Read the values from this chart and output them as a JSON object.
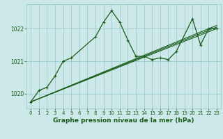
{
  "title": "Graphe pression niveau de la mer (hPa)",
  "bg_color": "#cce8e8",
  "grid_color": "#99cccc",
  "line_color": "#1a5c1a",
  "xlim": [
    -0.5,
    23.5
  ],
  "ylim": [
    1019.55,
    1022.75
  ],
  "yticks": [
    1020,
    1021,
    1022
  ],
  "xticks": [
    0,
    1,
    2,
    3,
    4,
    5,
    6,
    7,
    8,
    9,
    10,
    11,
    12,
    13,
    14,
    15,
    16,
    17,
    18,
    19,
    20,
    21,
    22,
    23
  ],
  "series": [
    {
      "x": [
        0,
        1,
        2,
        3,
        4,
        5,
        8,
        9,
        10,
        11,
        12,
        13,
        14,
        15,
        16,
        17,
        18,
        20,
        21,
        22,
        23
      ],
      "y": [
        1019.75,
        1020.1,
        1020.2,
        1020.55,
        1021.0,
        1021.1,
        1021.75,
        1022.2,
        1022.55,
        1022.2,
        1021.65,
        1021.15,
        1021.15,
        1021.05,
        1021.1,
        1021.05,
        1021.3,
        1022.3,
        1021.5,
        1022.0,
        1022.0
      ],
      "marker": "+"
    },
    {
      "x": [
        0,
        23
      ],
      "y": [
        1019.75,
        1022.0
      ],
      "marker": null
    },
    {
      "x": [
        0,
        23
      ],
      "y": [
        1019.75,
        1022.05
      ],
      "marker": null
    },
    {
      "x": [
        0,
        23
      ],
      "y": [
        1019.75,
        1022.1
      ],
      "marker": null
    }
  ]
}
